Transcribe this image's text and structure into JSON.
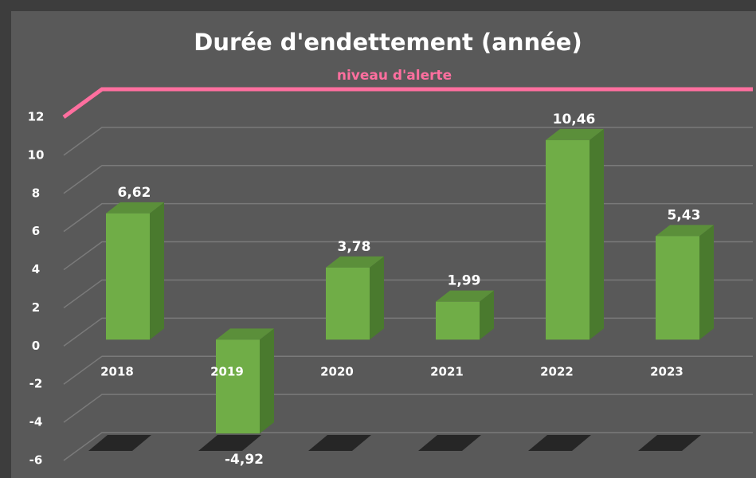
{
  "chart_data": {
    "type": "bar3d",
    "title": "Durée d'endettement (année)",
    "alert_line": {
      "label": "niveau d'alerte",
      "value": 12,
      "color": "#ff6f9f"
    },
    "categories": [
      "2018",
      "2019",
      "2020",
      "2021",
      "2022",
      "2023"
    ],
    "values": [
      6.62,
      -4.92,
      3.78,
      1.99,
      10.46,
      5.43
    ],
    "value_labels": [
      "6,62",
      "-4,92",
      "3,78",
      "1,99",
      "10,46",
      "5,43"
    ],
    "color": "#70ad47",
    "ylim": [
      -6,
      12
    ],
    "yticks": [
      12,
      10,
      8,
      6,
      4,
      2,
      0,
      -2,
      -4,
      -6
    ],
    "grid": true
  }
}
